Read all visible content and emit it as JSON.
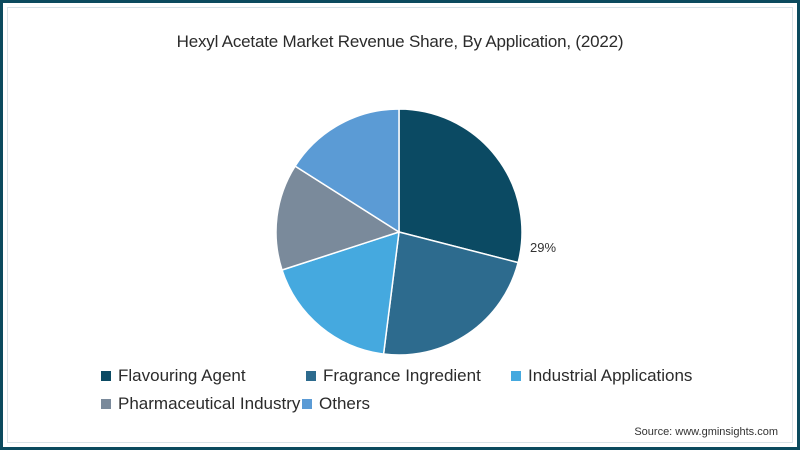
{
  "chart_data": {
    "type": "pie",
    "title": "Hexyl Acetate Market Revenue Share, By Application, (2022)",
    "categories": [
      "Flavouring Agent",
      "Fragrance Ingredient",
      "Industrial Applications",
      "Pharmaceutical Industry",
      "Others"
    ],
    "values": [
      29,
      23,
      18,
      14,
      16
    ],
    "colors": [
      "#0b4a63",
      "#2d6b8e",
      "#45a9df",
      "#7a8a9b",
      "#5b9bd5"
    ],
    "data_labels": [
      {
        "category": "Flavouring Agent",
        "text": "29%"
      }
    ],
    "start_angle_deg": 0,
    "direction": "clockwise",
    "legend_position": "bottom",
    "source": "Source: www.gminsights.com"
  },
  "title": "Hexyl Acetate Market Revenue Share, By Application, (2022)",
  "legend": [
    {
      "label": "Flavouring Agent",
      "color": "#0b4a63"
    },
    {
      "label": "Fragrance Ingredient",
      "color": "#2d6b8e"
    },
    {
      "label": "Industrial Applications",
      "color": "#45a9df"
    },
    {
      "label": "Pharmaceutical Industry",
      "color": "#7a8a9b"
    },
    {
      "label": "Others",
      "color": "#5b9bd5"
    }
  ],
  "label_29": "29%",
  "source": "Source: www.gminsights.com"
}
